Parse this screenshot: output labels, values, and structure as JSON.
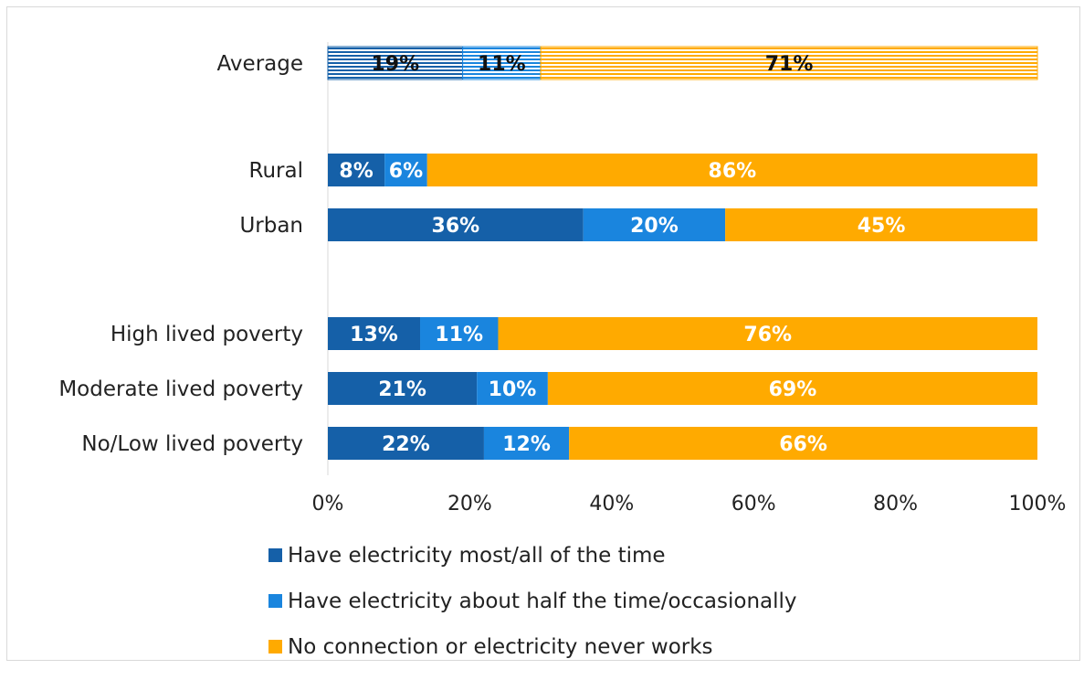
{
  "chart_data": {
    "type": "bar",
    "orientation": "horizontal",
    "stacked": true,
    "normalized": true,
    "categories": [
      "Average",
      "Rural",
      "Urban",
      "High lived poverty",
      "Moderate lived poverty",
      "No/Low lived poverty"
    ],
    "series": [
      {
        "name": "Have electricity most/all of the time",
        "color": "#1560a8",
        "values": [
          19,
          8,
          36,
          13,
          21,
          22
        ]
      },
      {
        "name": "Have electricity about half the time/occasionally",
        "color": "#1a85de",
        "values": [
          11,
          6,
          20,
          11,
          10,
          12
        ]
      },
      {
        "name": "No connection or electricity never works",
        "color": "#ffaa00",
        "values": [
          71,
          86,
          45,
          76,
          69,
          66
        ]
      }
    ],
    "data_labels": [
      [
        "19%",
        "8%",
        "36%",
        "13%",
        "21%",
        "22%"
      ],
      [
        "11%",
        "6%",
        "20%",
        "11%",
        "10%",
        "12%"
      ],
      [
        "71%",
        "86%",
        "45%",
        "76%",
        "69%",
        "66%"
      ]
    ],
    "highlighted_category": "Average",
    "xlim": [
      0,
      100
    ],
    "xticks": [
      "0%",
      "20%",
      "40%",
      "60%",
      "80%",
      "100%"
    ],
    "grid": false,
    "legend_position": "bottom"
  }
}
